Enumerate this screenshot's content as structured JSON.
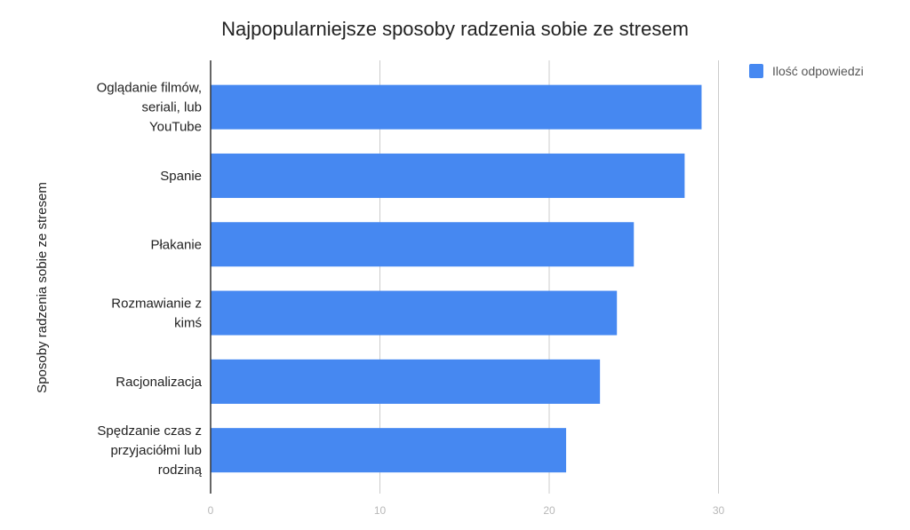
{
  "chart_data": {
    "type": "bar",
    "orientation": "horizontal",
    "title": "Najpopularniejsze sposoby radzenia sobie ze stresem",
    "ylabel": "Sposoby radzenia sobie ze stresem",
    "xlabel": "",
    "categories": [
      [
        "Oglądanie filmów,",
        "seriali, lub",
        "YouTube"
      ],
      [
        "Spanie"
      ],
      [
        "Płakanie"
      ],
      [
        "Rozmawianie z",
        "kimś"
      ],
      [
        "Racjonalizacja"
      ],
      [
        "Spędzanie czas z",
        "przyjaciółmi lub",
        "rodziną"
      ]
    ],
    "series": [
      {
        "name": "Ilość odpowiedzi",
        "color": "#4688f1",
        "values": [
          29,
          28,
          25,
          24,
          23,
          21
        ]
      }
    ],
    "xlim": [
      0,
      30
    ],
    "xticks": [
      "0",
      "10",
      "20",
      "30"
    ],
    "grid": true,
    "legend_position": "top-right"
  }
}
